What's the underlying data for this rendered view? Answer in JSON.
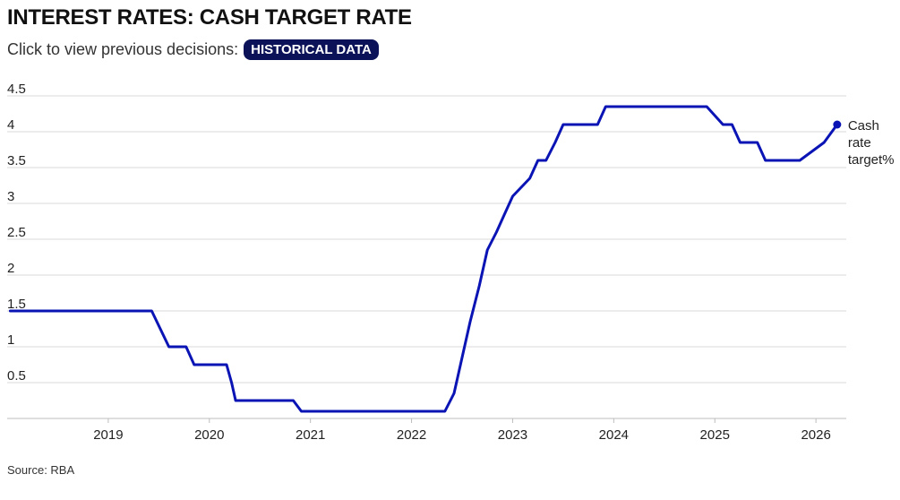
{
  "header": {
    "title": "INTEREST RATES: CASH TARGET RATE",
    "subtitle": "Click to view previous decisions:",
    "button_label": "HISTORICAL DATA"
  },
  "footer": {
    "source": "Source: RBA"
  },
  "colors": {
    "line": "#0a14b4",
    "button_bg": "#0b1257",
    "grid": "#d9d9d9"
  },
  "chart_data": {
    "type": "line",
    "title": "INTEREST RATES: CASH TARGET RATE",
    "xlabel": "",
    "ylabel": "",
    "xlim": [
      2018.0,
      2026.3
    ],
    "ylim": [
      0,
      4.5
    ],
    "yticks": [
      "0.5",
      "1",
      "1.5",
      "2",
      "2.5",
      "3",
      "3.5",
      "4",
      "4.5"
    ],
    "xticks": [
      "2019",
      "2020",
      "2021",
      "2022",
      "2023",
      "2024",
      "2025",
      "2026"
    ],
    "grid": "horizontal",
    "series": [
      {
        "name": "Cash rate target%",
        "points": [
          [
            2018.03,
            1.5
          ],
          [
            2019.43,
            1.5
          ],
          [
            2019.6,
            1.0
          ],
          [
            2019.77,
            1.0
          ],
          [
            2019.85,
            0.75
          ],
          [
            2020.17,
            0.75
          ],
          [
            2020.22,
            0.5
          ],
          [
            2020.26,
            0.25
          ],
          [
            2020.83,
            0.25
          ],
          [
            2020.91,
            0.1
          ],
          [
            2022.33,
            0.1
          ],
          [
            2022.42,
            0.35
          ],
          [
            2022.5,
            0.85
          ],
          [
            2022.58,
            1.35
          ],
          [
            2022.67,
            1.85
          ],
          [
            2022.75,
            2.35
          ],
          [
            2022.84,
            2.6
          ],
          [
            2022.92,
            2.85
          ],
          [
            2023.0,
            3.1
          ],
          [
            2023.17,
            3.35
          ],
          [
            2023.25,
            3.6
          ],
          [
            2023.33,
            3.6
          ],
          [
            2023.42,
            3.85
          ],
          [
            2023.5,
            4.1
          ],
          [
            2023.84,
            4.1
          ],
          [
            2023.92,
            4.35
          ],
          [
            2024.92,
            4.35
          ],
          [
            2025.08,
            4.1
          ],
          [
            2025.17,
            4.1
          ],
          [
            2025.25,
            3.85
          ],
          [
            2025.42,
            3.85
          ],
          [
            2025.5,
            3.6
          ],
          [
            2025.84,
            3.6
          ],
          [
            2026.08,
            3.85
          ],
          [
            2026.21,
            4.1
          ]
        ],
        "label": "Cash rate target%",
        "label_lines": [
          "Cash",
          "rate",
          "target%"
        ]
      }
    ]
  }
}
